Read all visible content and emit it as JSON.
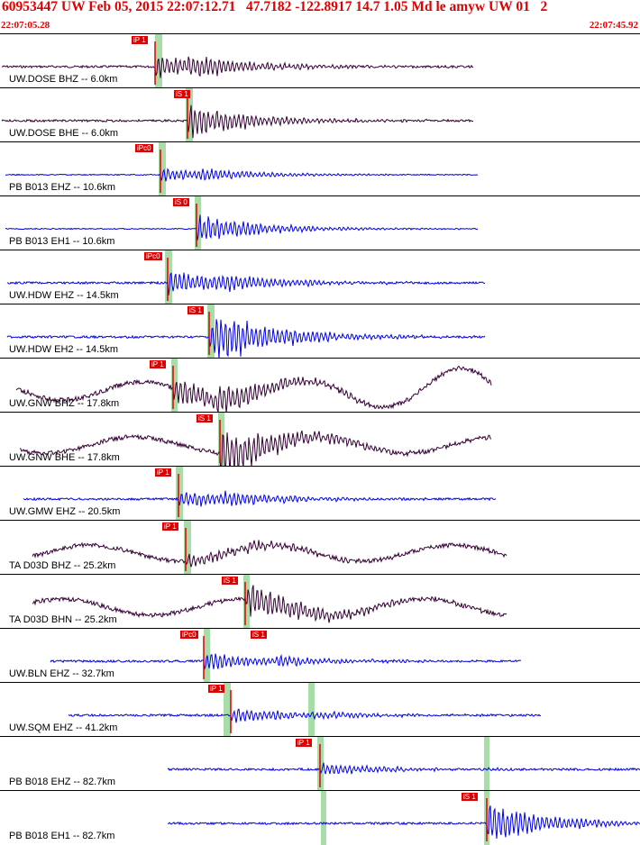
{
  "header": {
    "title": "60953447 UW Feb 05, 2015 22:07:12.71   47.7182 -122.8917 14.7 1.05 Md le amyw UW 01   2",
    "start_time": "22:07:05.28",
    "end_time": "22:07:45.92"
  },
  "colors": {
    "pick": "#e00000",
    "window": "#a8dca8",
    "trace_bhz": "#330033",
    "trace_ehz": "#0000ee",
    "envelope": "#000000"
  },
  "panels": [
    {
      "label": "UW.DOSE BHZ -- 6.0km",
      "pick": "iP 1",
      "type": "bh"
    },
    {
      "label": "UW.DOSE BHE -- 6.0km",
      "pick": "iS 1",
      "type": "bh"
    },
    {
      "label": "PB B013 EHZ -- 10.6km",
      "pick": "iPc0",
      "type": "eh"
    },
    {
      "label": "PB B013 EH1 -- 10.6km",
      "pick": "iS 0",
      "type": "eh"
    },
    {
      "label": "UW.HDW EHZ -- 14.5km",
      "pick": "iPc0",
      "type": "eh"
    },
    {
      "label": "UW.HDW EH2 -- 14.5km",
      "pick": "iS 1",
      "type": "eh"
    },
    {
      "label": "UW.GNW BHZ -- 17.8km",
      "pick": "iP 1",
      "type": "bh"
    },
    {
      "label": "UW.GNW BHE -- 17.8km",
      "pick": "iS 1",
      "type": "bh"
    },
    {
      "label": "UW.GMW EHZ -- 20.5km",
      "pick": "iP 1",
      "type": "eh"
    },
    {
      "label": "TA D03D BHZ -- 25.2km",
      "pick": "iP 1",
      "type": "bh"
    },
    {
      "label": "TA D03D BHN -- 25.2km",
      "pick": "iS 1",
      "type": "bh"
    },
    {
      "label": "UW.BLN EHZ -- 32.7km",
      "pick": "iPc0",
      "pick2": "iS 1",
      "type": "eh"
    },
    {
      "label": "UW.SQM EHZ -- 41.2km",
      "pick": "iP 1",
      "type": "eh"
    },
    {
      "label": "PB B018 EHZ -- 82.7km",
      "pick": "iP 1",
      "type": "eh"
    },
    {
      "label": "PB B018 EH1 -- 82.7km",
      "pick": "iS 1",
      "type": "eh"
    }
  ]
}
